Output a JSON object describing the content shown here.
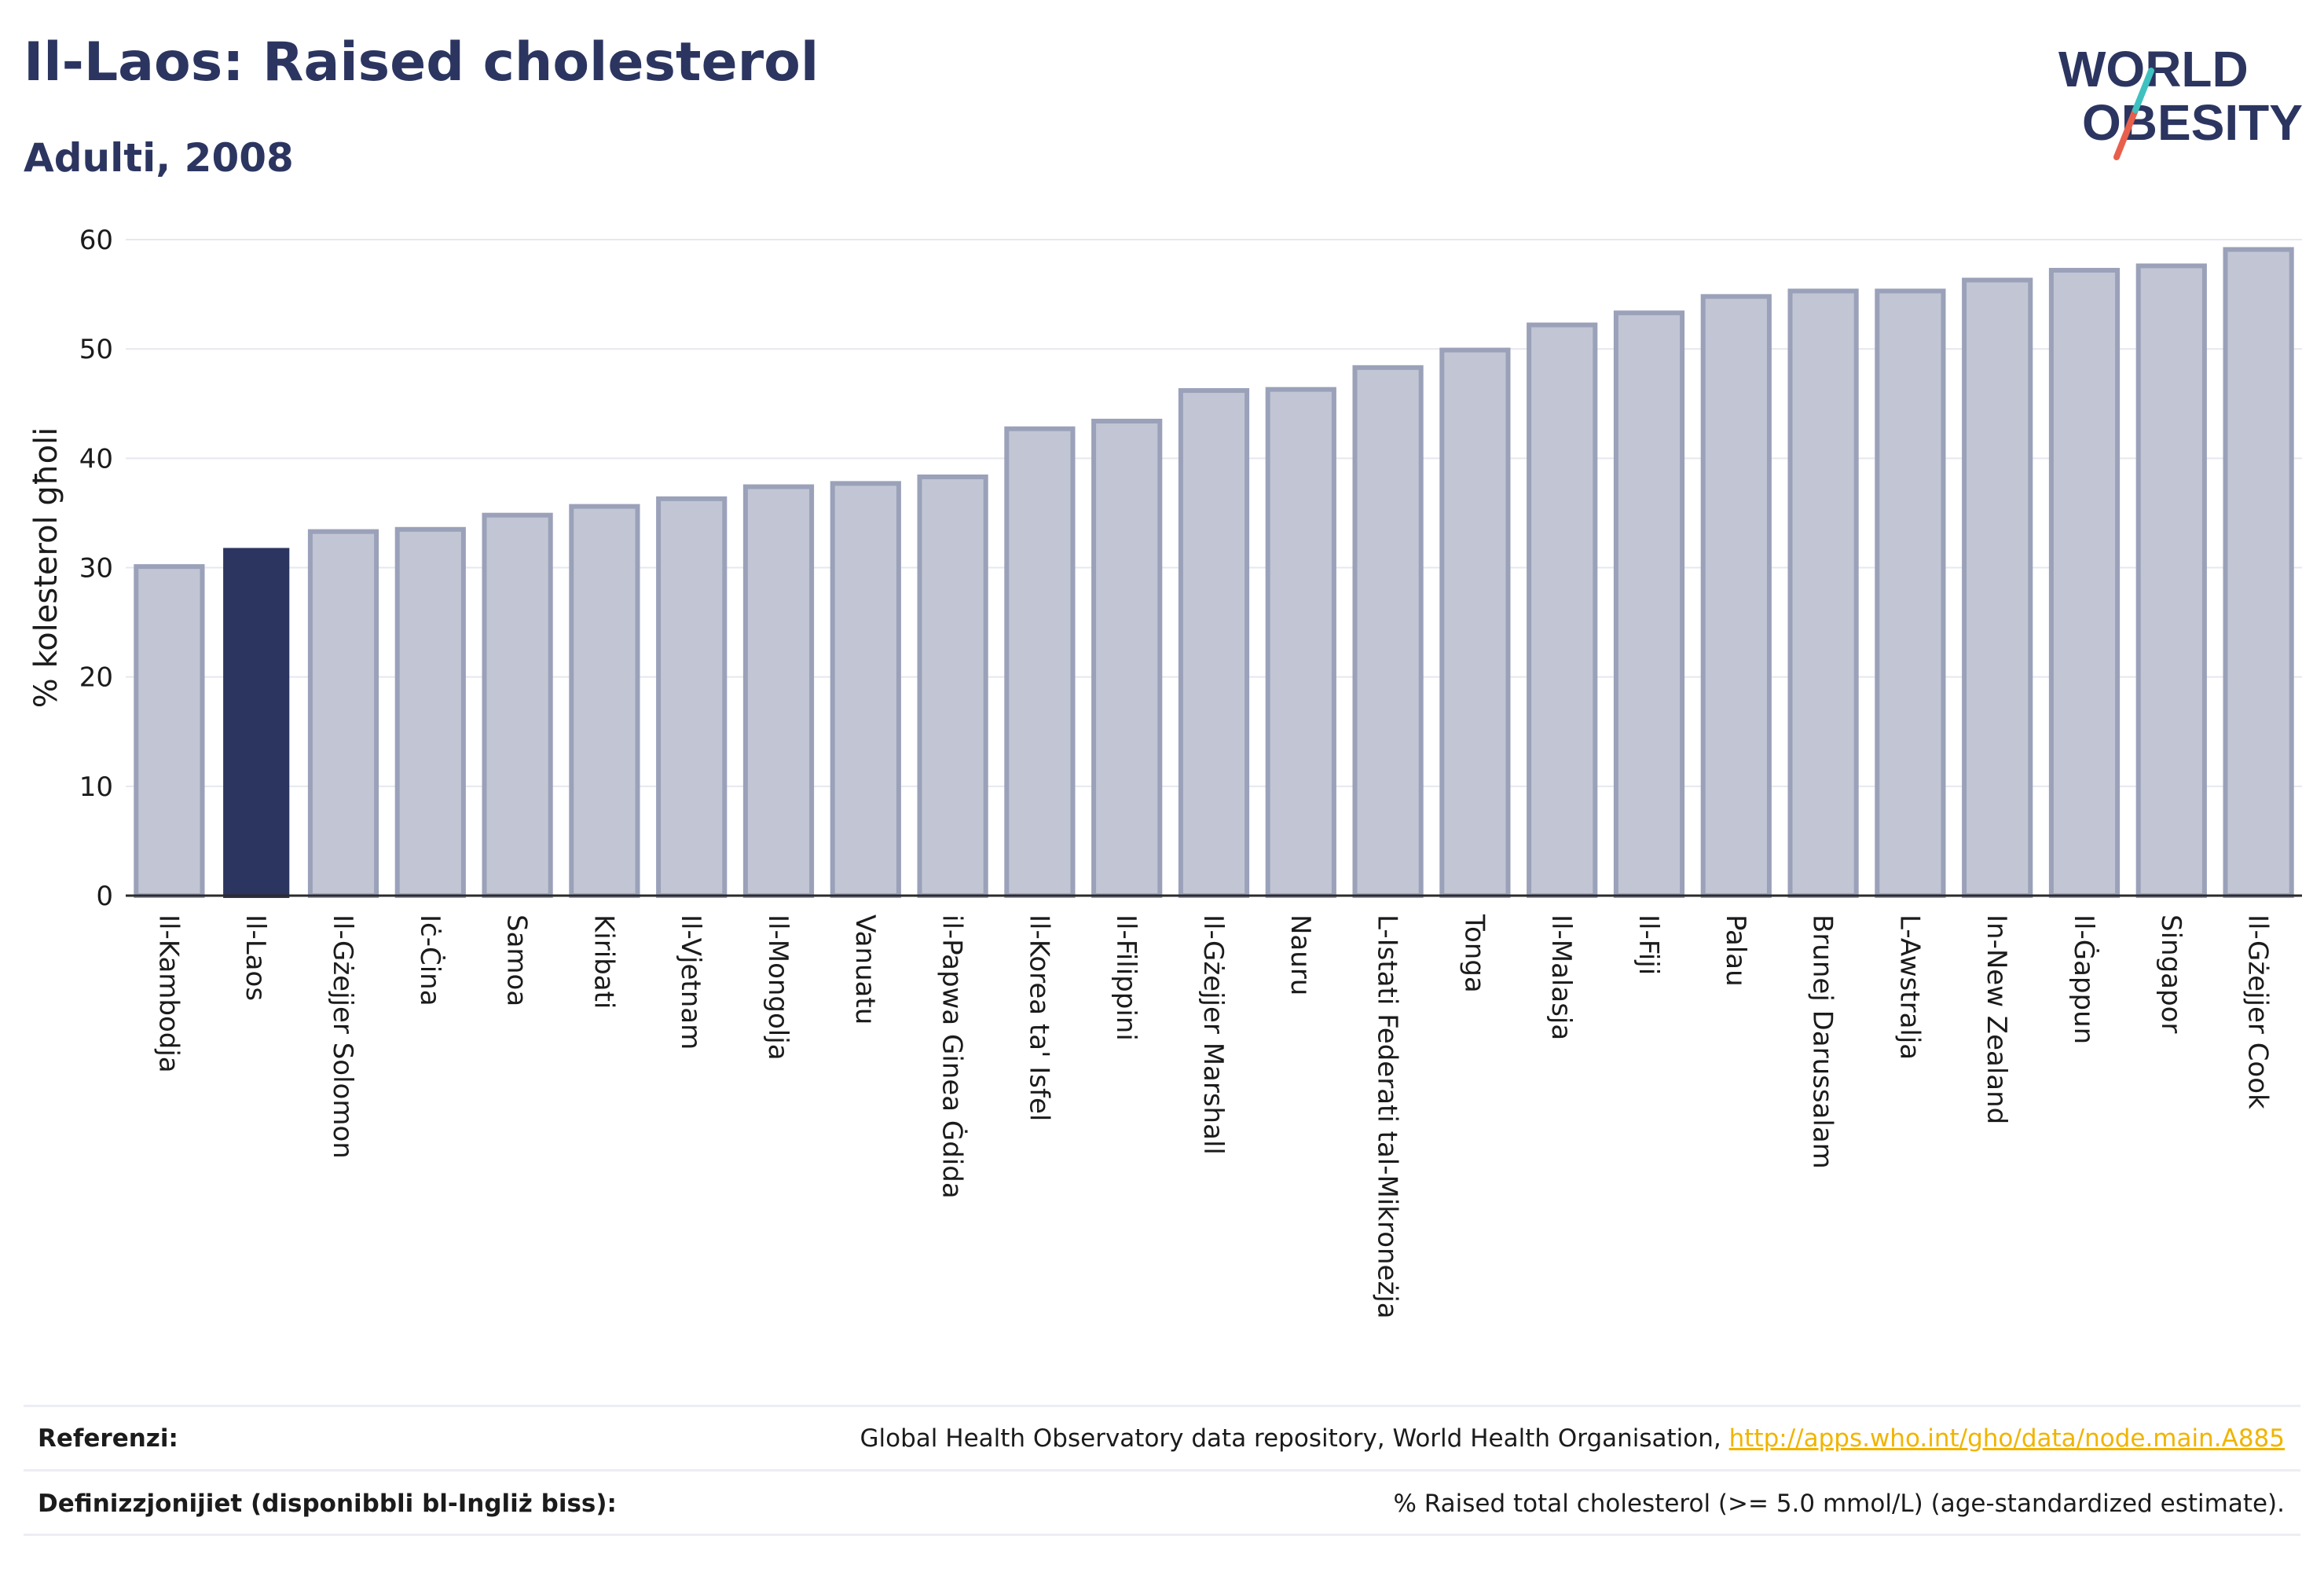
{
  "title": "Il-Laos: Raised cholesterol",
  "subtitle": "Adulti, 2008",
  "logo": {
    "line1": "WORLD",
    "line2": "OBESITY"
  },
  "chart_data": {
    "type": "bar",
    "ylabel": "% kolesterol għoli",
    "xlabel": "",
    "ylim": [
      0,
      60
    ],
    "yticks": [
      0,
      10,
      20,
      30,
      40,
      50,
      60
    ],
    "grid": true,
    "categories": [
      "Il-Kambodja",
      "Il-Laos",
      "Il-Gżejjer Solomon",
      "Iċ-Ċina",
      "Samoa",
      "Kiribati",
      "Il-Vjetnam",
      "Il-Mongolja",
      "Vanuatu",
      "il-Papwa Ginea Ġdida",
      "Il-Korea ta' Isfel",
      "Il-Filippini",
      "Il-Gżejjer Marshall",
      "Nauru",
      "L-Istati Federati tal-Mikroneżja",
      "Tonga",
      "Il-Malasja",
      "Il-Fiji",
      "Palau",
      "Brunej Darussalam",
      "L-Awstralja",
      "In-New Zealand",
      "Il-Ġappun",
      "Singapor",
      "Il-Gżejjer Cook"
    ],
    "values": [
      30.1,
      31.8,
      33.3,
      33.5,
      34.8,
      35.6,
      36.3,
      37.4,
      37.7,
      38.3,
      42.7,
      43.4,
      46.2,
      46.3,
      48.3,
      49.9,
      52.2,
      53.3,
      54.8,
      55.3,
      55.3,
      56.3,
      57.2,
      57.6,
      59.1
    ],
    "highlight": "Il-Laos",
    "colors": {
      "default": "#c2c6d4",
      "default_edge": "#9aa1b9",
      "highlight": "#2b3560"
    }
  },
  "footer": {
    "references_label": "Referenzi:",
    "references_text": "Global Health Observatory data repository, World Health Organisation, ",
    "references_link": "http://apps.who.int/gho/data/node.main.A885",
    "definitions_label": "Definizzjonijiet (disponibbli bl-Ingliż biss):",
    "definitions_text": "% Raised total cholesterol (>= 5.0 mmol/L) (age-standardized estimate)."
  }
}
